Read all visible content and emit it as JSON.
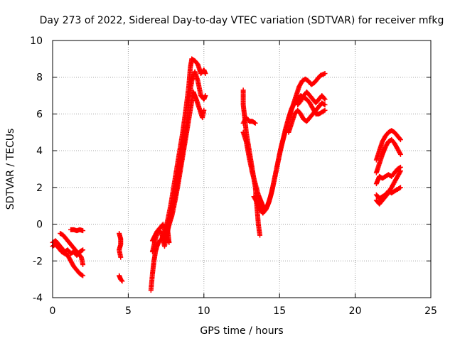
{
  "chart_data": {
    "type": "scatter",
    "title": "Day 273 of 2022, Sidereal Day-to-day VTEC variation (SDTVAR) for receiver mfkg",
    "xlabel": "GPS time / hours",
    "ylabel": "SDTVAR / TECUs",
    "xlim": [
      0,
      25
    ],
    "ylim": [
      -4,
      10
    ],
    "xticks": [
      "0",
      "5",
      "10",
      "15",
      "20",
      "25"
    ],
    "yticks": [
      "-4",
      "-2",
      "0",
      "2",
      "4",
      "6",
      "8",
      "10"
    ],
    "grid": true,
    "marker": "+",
    "color": "#ff0000",
    "series": [
      {
        "name": "SDTVAR",
        "segments": [
          [
            [
              0.0,
              -1.0
            ],
            [
              0.2,
              -0.9
            ],
            [
              0.4,
              -1.1
            ],
            [
              0.6,
              -1.3
            ],
            [
              0.8,
              -1.5
            ],
            [
              1.0,
              -1.4
            ],
            [
              1.2,
              -1.6
            ],
            [
              1.4,
              -1.5
            ],
            [
              1.6,
              -1.7
            ],
            [
              1.8,
              -1.5
            ],
            [
              2.0,
              -1.4
            ]
          ],
          [
            [
              0.0,
              -1.2
            ],
            [
              0.2,
              -1.1
            ],
            [
              0.4,
              -1.3
            ],
            [
              0.6,
              -1.5
            ],
            [
              0.8,
              -1.6
            ],
            [
              1.0,
              -1.7
            ],
            [
              1.2,
              -2.0
            ],
            [
              1.4,
              -2.3
            ],
            [
              1.6,
              -2.5
            ],
            [
              1.8,
              -2.7
            ],
            [
              2.0,
              -2.8
            ]
          ],
          [
            [
              0.5,
              -0.5
            ],
            [
              0.7,
              -0.6
            ],
            [
              0.9,
              -0.8
            ],
            [
              1.1,
              -1.0
            ],
            [
              1.3,
              -1.2
            ],
            [
              1.5,
              -1.4
            ],
            [
              1.7,
              -1.6
            ],
            [
              1.9,
              -1.8
            ],
            [
              2.0,
              -2.2
            ]
          ],
          [
            [
              1.2,
              -0.3
            ],
            [
              1.4,
              -0.3
            ],
            [
              1.6,
              -0.35
            ],
            [
              1.8,
              -0.3
            ],
            [
              2.0,
              -0.35
            ]
          ],
          [
            [
              4.4,
              -0.5
            ],
            [
              4.5,
              -0.8
            ],
            [
              4.5,
              -1.1
            ],
            [
              4.4,
              -1.4
            ],
            [
              4.5,
              -1.8
            ]
          ],
          [
            [
              4.4,
              -2.8
            ],
            [
              4.5,
              -3.0
            ],
            [
              4.6,
              -3.1
            ]
          ],
          [
            [
              6.5,
              -3.6
            ],
            [
              6.6,
              -2.7
            ],
            [
              6.7,
              -2.0
            ],
            [
              6.8,
              -1.5
            ],
            [
              6.9,
              -1.2
            ],
            [
              7.0,
              -1.0
            ],
            [
              7.2,
              -0.8
            ],
            [
              7.4,
              -0.5
            ],
            [
              7.6,
              0.2
            ],
            [
              7.8,
              1.0
            ],
            [
              8.0,
              2.0
            ],
            [
              8.2,
              3.0
            ],
            [
              8.4,
              4.0
            ],
            [
              8.6,
              5.0
            ],
            [
              8.8,
              6.2
            ],
            [
              9.0,
              7.5
            ],
            [
              9.1,
              8.5
            ],
            [
              9.2,
              9.0
            ],
            [
              9.4,
              8.9
            ],
            [
              9.6,
              8.7
            ],
            [
              9.8,
              8.2
            ],
            [
              10.0,
              8.4
            ],
            [
              10.1,
              8.2
            ]
          ],
          [
            [
              6.6,
              -1.5
            ],
            [
              6.8,
              -0.8
            ],
            [
              7.0,
              -0.3
            ],
            [
              7.2,
              -0.5
            ],
            [
              7.4,
              -1.2
            ],
            [
              7.5,
              -0.8
            ],
            [
              7.7,
              0.0
            ],
            [
              7.9,
              0.8
            ],
            [
              8.1,
              1.6
            ],
            [
              8.3,
              2.5
            ],
            [
              8.5,
              3.5
            ],
            [
              8.7,
              4.5
            ],
            [
              8.9,
              5.6
            ],
            [
              9.0,
              6.8
            ],
            [
              9.2,
              7.8
            ],
            [
              9.4,
              8.3
            ],
            [
              9.6,
              7.8
            ],
            [
              9.8,
              7.0
            ],
            [
              10.0,
              6.8
            ],
            [
              10.1,
              7.0
            ]
          ],
          [
            [
              6.6,
              -0.9
            ],
            [
              6.9,
              -0.4
            ],
            [
              7.1,
              -0.2
            ],
            [
              7.3,
              0.0
            ],
            [
              7.5,
              -0.7
            ],
            [
              7.7,
              -1.0
            ],
            [
              7.6,
              -0.3
            ],
            [
              7.9,
              0.5
            ],
            [
              8.1,
              1.3
            ],
            [
              8.3,
              2.2
            ],
            [
              8.5,
              3.2
            ],
            [
              8.7,
              4.2
            ],
            [
              8.9,
              5.2
            ],
            [
              9.1,
              6.2
            ],
            [
              9.3,
              7.2
            ],
            [
              9.5,
              6.8
            ],
            [
              9.7,
              6.3
            ],
            [
              9.9,
              5.8
            ],
            [
              10.0,
              6.2
            ]
          ],
          [
            [
              12.6,
              7.3
            ],
            [
              12.6,
              6.5
            ],
            [
              12.7,
              5.8
            ],
            [
              12.8,
              5.0
            ],
            [
              13.0,
              4.0
            ],
            [
              13.2,
              3.0
            ],
            [
              13.4,
              2.0
            ],
            [
              13.5,
              1.0
            ],
            [
              13.6,
              0.0
            ],
            [
              13.7,
              -0.6
            ]
          ],
          [
            [
              12.6,
              5.0
            ],
            [
              12.8,
              4.5
            ],
            [
              13.0,
              3.6
            ],
            [
              13.2,
              2.8
            ],
            [
              13.4,
              2.2
            ],
            [
              13.6,
              1.6
            ],
            [
              13.8,
              1.2
            ],
            [
              14.0,
              0.8
            ],
            [
              14.2,
              1.0
            ],
            [
              14.4,
              1.5
            ],
            [
              14.6,
              2.2
            ],
            [
              14.8,
              3.0
            ],
            [
              15.0,
              3.8
            ],
            [
              15.2,
              4.5
            ],
            [
              15.4,
              5.2
            ],
            [
              15.6,
              5.8
            ],
            [
              15.8,
              6.3
            ],
            [
              16.0,
              6.6
            ],
            [
              16.2,
              6.8
            ],
            [
              16.4,
              7.0
            ],
            [
              16.6,
              6.9
            ],
            [
              16.8,
              6.8
            ],
            [
              17.0,
              6.6
            ],
            [
              17.2,
              6.3
            ],
            [
              17.4,
              6.0
            ],
            [
              17.6,
              6.0
            ],
            [
              17.8,
              6.1
            ],
            [
              18.0,
              6.2
            ]
          ],
          [
            [
              12.6,
              5.5
            ],
            [
              12.8,
              5.8
            ],
            [
              13.0,
              5.6
            ],
            [
              13.2,
              5.6
            ],
            [
              13.4,
              5.5
            ]
          ],
          [
            [
              13.3,
              1.5
            ],
            [
              13.5,
              1.2
            ],
            [
              13.7,
              0.8
            ],
            [
              13.9,
              0.6
            ],
            [
              14.1,
              0.8
            ],
            [
              14.3,
              1.2
            ],
            [
              14.5,
              1.8
            ],
            [
              14.7,
              2.6
            ],
            [
              14.9,
              3.4
            ],
            [
              15.1,
              4.2
            ],
            [
              15.3,
              4.8
            ],
            [
              15.5,
              5.4
            ],
            [
              15.7,
              6.0
            ],
            [
              15.9,
              6.5
            ],
            [
              16.1,
              7.0
            ],
            [
              16.3,
              7.5
            ],
            [
              16.5,
              7.8
            ],
            [
              16.7,
              7.9
            ],
            [
              16.9,
              7.8
            ],
            [
              17.1,
              7.6
            ],
            [
              17.3,
              7.7
            ],
            [
              17.5,
              7.9
            ],
            [
              17.7,
              8.1
            ],
            [
              18.0,
              8.2
            ]
          ],
          [
            [
              15.6,
              5.0
            ],
            [
              15.8,
              5.5
            ],
            [
              16.0,
              6.0
            ],
            [
              16.2,
              6.2
            ],
            [
              16.4,
              6.0
            ],
            [
              16.6,
              5.7
            ],
            [
              16.8,
              5.6
            ],
            [
              17.0,
              5.8
            ],
            [
              17.2,
              6.0
            ],
            [
              17.4,
              6.2
            ],
            [
              17.6,
              6.4
            ],
            [
              17.8,
              6.6
            ],
            [
              18.0,
              6.5
            ]
          ],
          [
            [
              16.2,
              6.5
            ],
            [
              16.4,
              6.7
            ],
            [
              16.6,
              7.0
            ],
            [
              16.8,
              7.2
            ],
            [
              17.0,
              7.0
            ],
            [
              17.2,
              6.8
            ],
            [
              17.4,
              6.6
            ],
            [
              17.6,
              6.8
            ],
            [
              17.8,
              7.0
            ],
            [
              18.0,
              6.8
            ]
          ],
          [
            [
              21.4,
              3.5
            ],
            [
              21.6,
              4.0
            ],
            [
              21.8,
              4.5
            ],
            [
              22.0,
              4.8
            ],
            [
              22.2,
              5.0
            ],
            [
              22.4,
              5.1
            ],
            [
              22.6,
              5.0
            ],
            [
              22.8,
              4.8
            ],
            [
              23.0,
              4.6
            ]
          ],
          [
            [
              21.4,
              2.8
            ],
            [
              21.6,
              3.3
            ],
            [
              21.8,
              3.8
            ],
            [
              22.0,
              4.2
            ],
            [
              22.2,
              4.5
            ],
            [
              22.4,
              4.6
            ],
            [
              22.6,
              4.4
            ],
            [
              22.8,
              4.1
            ],
            [
              23.0,
              3.8
            ]
          ],
          [
            [
              21.4,
              2.2
            ],
            [
              21.6,
              2.6
            ],
            [
              21.8,
              2.5
            ],
            [
              22.0,
              2.6
            ],
            [
              22.2,
              2.7
            ],
            [
              22.4,
              2.6
            ],
            [
              22.6,
              2.8
            ],
            [
              22.8,
              3.0
            ],
            [
              23.0,
              3.1
            ]
          ],
          [
            [
              21.4,
              1.6
            ],
            [
              21.6,
              1.4
            ],
            [
              21.8,
              1.5
            ],
            [
              22.0,
              1.6
            ],
            [
              22.2,
              1.8
            ],
            [
              22.4,
              1.7
            ],
            [
              22.6,
              1.8
            ],
            [
              22.8,
              1.9
            ],
            [
              23.0,
              2.0
            ]
          ],
          [
            [
              21.4,
              1.3
            ],
            [
              21.6,
              1.1
            ],
            [
              21.8,
              1.3
            ],
            [
              22.0,
              1.5
            ],
            [
              22.2,
              1.7
            ],
            [
              22.4,
              2.0
            ],
            [
              22.6,
              2.3
            ],
            [
              22.8,
              2.6
            ],
            [
              23.0,
              2.9
            ]
          ]
        ]
      }
    ]
  }
}
